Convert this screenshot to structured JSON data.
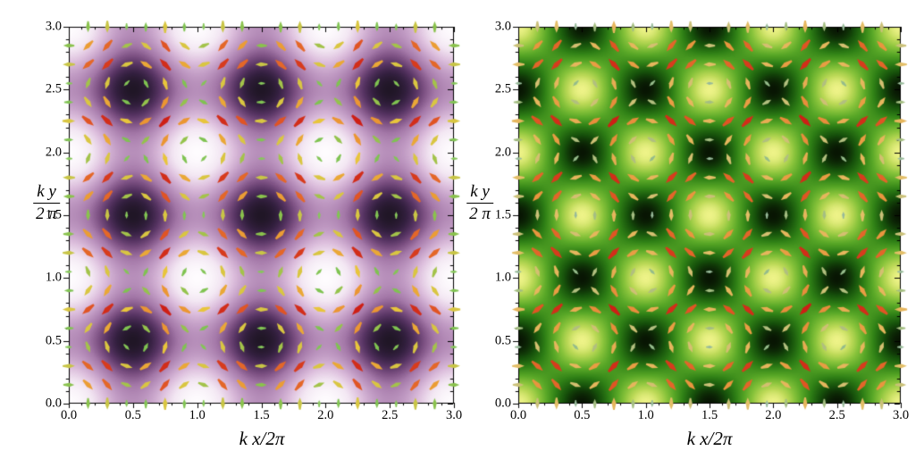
{
  "figure": {
    "background_color": "#ffffff",
    "frame_color": "#000000",
    "tick_color": "#000000",
    "text_color": "#000000"
  },
  "chart_data": [
    {
      "id": "left-panel",
      "type": "heatmap",
      "overlay": "quiver",
      "xlabel": "k x/2π",
      "ylabel": {
        "numerator": "k y",
        "denominator": "2 π"
      },
      "x_range": [
        0,
        3
      ],
      "y_range": [
        0,
        3
      ],
      "x_tick_values": [
        0,
        0.5,
        1,
        1.5,
        2,
        2.5,
        3
      ],
      "x_tick_labels": [
        "0.0",
        "0.5",
        "1.0",
        "1.5",
        "2.0",
        "2.5",
        "3.0"
      ],
      "y_tick_values": [
        0,
        0.5,
        1,
        1.5,
        2,
        2.5,
        3
      ],
      "y_tick_labels": [
        "0.0",
        "0.5",
        "1.0",
        "1.5",
        "2.0",
        "2.5",
        "3.0"
      ],
      "minor_tick_step": 0.1,
      "grid": false,
      "density": {
        "description": "periodic intensity, dark wells at half-integer lattice sites",
        "formula": "(sin(pi*x)^2 + sin(pi*y)^2)/2",
        "value_range": [
          0,
          1
        ],
        "colormap": [
          [
            0.0,
            "#fefcfe"
          ],
          [
            0.15,
            "#f3e7f3"
          ],
          [
            0.3,
            "#ddbfdd"
          ],
          [
            0.45,
            "#c09ac3"
          ],
          [
            0.6,
            "#a478a8"
          ],
          [
            0.72,
            "#7d5183"
          ],
          [
            0.82,
            "#573463"
          ],
          [
            0.92,
            "#342040"
          ],
          [
            1.0,
            "#201626"
          ]
        ]
      },
      "vector_field": {
        "description": "circulating lattice force field, arrows colored by magnitude",
        "formula_x": "sin(2*pi*y)",
        "formula_y": "-sin(2*pi*x)",
        "grid_min": 0,
        "grid_max": 3,
        "grid_points": 21,
        "max_magnitude": 1.4142,
        "colormap": [
          [
            0.0,
            "#8ecb63"
          ],
          [
            0.55,
            "#7dc24f"
          ],
          [
            0.68,
            "#cdc646"
          ],
          [
            0.74,
            "#e8c63c"
          ],
          [
            0.82,
            "#ec9733"
          ],
          [
            0.9,
            "#e25a26"
          ],
          [
            1.0,
            "#ce1f15"
          ]
        ]
      }
    },
    {
      "id": "right-panel",
      "type": "heatmap",
      "overlay": "quiver",
      "xlabel": "k x/2π",
      "ylabel": {
        "numerator": "k y",
        "denominator": "2 π"
      },
      "x_range": [
        0,
        3
      ],
      "y_range": [
        0,
        3
      ],
      "x_tick_values": [
        0,
        0.5,
        1,
        1.5,
        2,
        2.5,
        3
      ],
      "x_tick_labels": [
        "0.0",
        "0.5",
        "1.0",
        "1.5",
        "2.0",
        "2.5",
        "3.0"
      ],
      "y_tick_values": [
        0,
        0.5,
        1,
        1.5,
        2,
        2.5,
        3
      ],
      "y_tick_labels": [
        "0.0",
        "0.5",
        "1.0",
        "1.5",
        "2.0",
        "2.5",
        "3.0"
      ],
      "minor_tick_step": 0.1,
      "grid": false,
      "density": {
        "description": "checkerboard interference pattern, bright where x,y both integer or both half-integer",
        "formula": "(1 + cos(2*pi*x)*cos(2*pi*y))/2",
        "value_range": [
          0,
          1
        ],
        "colormap": [
          [
            0.0,
            "#081503"
          ],
          [
            0.18,
            "#16500b"
          ],
          [
            0.38,
            "#2f8016"
          ],
          [
            0.58,
            "#58a727"
          ],
          [
            0.75,
            "#8ac43c"
          ],
          [
            0.88,
            "#bcd957"
          ],
          [
            1.0,
            "#eef388"
          ]
        ]
      },
      "vector_field": {
        "description": "same circulating field, arrows colored by magnitude (slate at zero)",
        "formula_x": "sin(2*pi*y)",
        "formula_y": "-sin(2*pi*x)",
        "grid_min": 0,
        "grid_max": 3,
        "grid_points": 21,
        "max_magnitude": 1.4142,
        "colormap": [
          [
            0.0,
            "#9db7bd"
          ],
          [
            0.35,
            "#95bd85"
          ],
          [
            0.55,
            "#c5c17c"
          ],
          [
            0.68,
            "#e5be66"
          ],
          [
            0.8,
            "#ea9b42"
          ],
          [
            0.9,
            "#e25a26"
          ],
          [
            1.0,
            "#ce1f15"
          ]
        ]
      }
    }
  ]
}
